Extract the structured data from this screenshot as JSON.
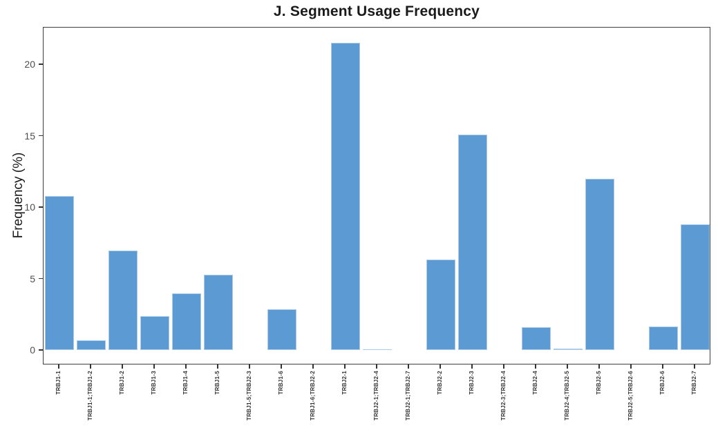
{
  "header": {
    "title": "J. Segment Usage Frequency"
  },
  "axes": {
    "y_label": "Frequency (%)"
  },
  "chart_data": {
    "type": "bar",
    "title": "J. Segment Usage Frequency",
    "xlabel": "",
    "ylabel": "Frequency (%)",
    "categories": [
      "TRBJ1-1",
      "TRBJ1-1;TRBJ1-2",
      "TRBJ1-2",
      "TRBJ1-3",
      "TRBJ1-4",
      "TRBJ1-5",
      "TRBJ1-5;TRBJ2-3",
      "TRBJ1-6",
      "TRBJ1-6;TRBJ2-2",
      "TRBJ2-1",
      "TRBJ2-1;TRBJ2-4",
      "TRBJ2-1;TRBJ2-7",
      "TRBJ2-2",
      "TRBJ2-3",
      "TRBJ2-3;TRBJ2-4",
      "TRBJ2-4",
      "TRBJ2-4;TRBJ2-5",
      "TRBJ2-5",
      "TRBJ2-5;TRBJ2-6",
      "TRBJ2-6",
      "TRBJ2-7"
    ],
    "values": [
      10.8,
      0.7,
      7.0,
      2.4,
      4.0,
      5.3,
      0,
      2.85,
      0,
      21.5,
      0.05,
      0,
      6.35,
      15.1,
      0,
      1.6,
      0.12,
      12.0,
      0,
      1.65,
      8.8
    ],
    "yticks": [
      0,
      5,
      10,
      15,
      20
    ],
    "ylim": [
      -1.0,
      22.6
    ],
    "grid": false,
    "legend": "none",
    "bar_color": "#5b9ad3",
    "bar_border_color": "#abcbe9",
    "frame_color": "#3d3d3d",
    "tick_color": "#333333",
    "y_tick_label_color": "#4d4d4d",
    "x_tick_label_color": "#333333",
    "title_color": "#1a1a1a",
    "background_color": "#ffffff"
  }
}
